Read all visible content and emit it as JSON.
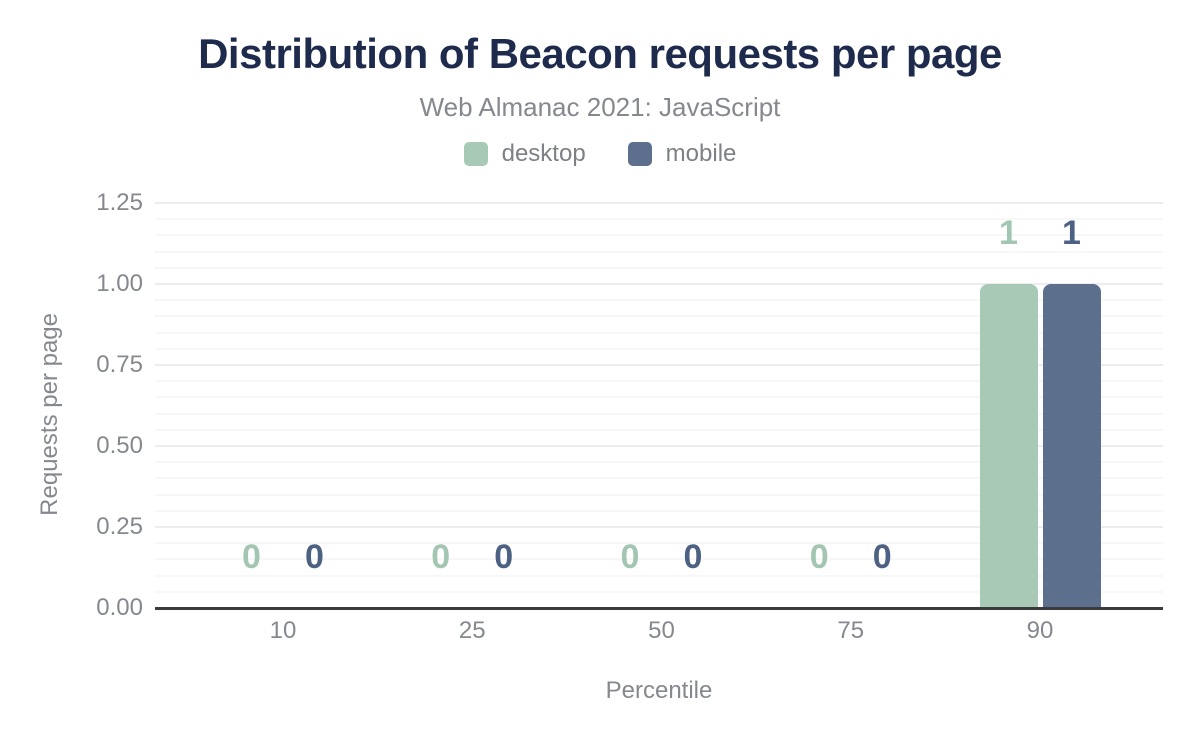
{
  "header": {
    "title": "Distribution of Beacon requests per page",
    "subtitle": "Web Almanac 2021: JavaScript"
  },
  "chart_data": {
    "type": "bar",
    "title": "Distribution of Beacon requests per page",
    "subtitle": "Web Almanac 2021: JavaScript",
    "categories": [
      "10",
      "25",
      "50",
      "75",
      "90"
    ],
    "series": [
      {
        "name": "desktop",
        "color": "#a8c9b6",
        "label_color": "#a3c6b2",
        "values": [
          0,
          0,
          0,
          0,
          1
        ]
      },
      {
        "name": "mobile",
        "color": "#5c6f8d",
        "label_color": "#4d6282",
        "values": [
          0,
          0,
          0,
          0,
          1
        ]
      }
    ],
    "xlabel": "Percentile",
    "ylabel": "Requests per page",
    "ylim": [
      0,
      1.25
    ],
    "y_major_step": 0.25,
    "y_minor_step": 0.05,
    "y_tick_labels": [
      "0.00",
      "0.25",
      "0.50",
      "0.75",
      "1.00",
      "1.25"
    ],
    "grid": true,
    "legend_position": "top",
    "data_labels": true
  },
  "colors": {
    "title": "#1e2b4d",
    "muted": "#85898f",
    "axis-line": "#3a3b3d",
    "grid-minor": "#f7f7f8",
    "grid-major": "#ededef",
    "background": "#ffffff"
  }
}
